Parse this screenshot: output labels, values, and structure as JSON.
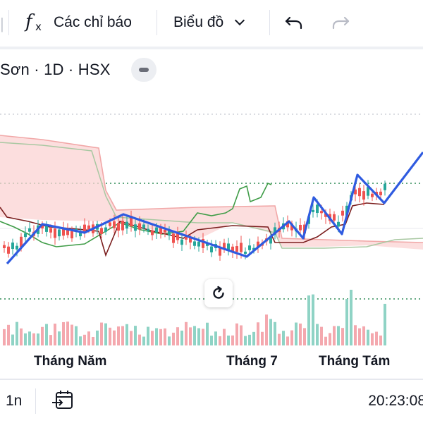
{
  "toolbar": {
    "left_edge_symbol": "|",
    "indicators_icon": "function-fx-icon",
    "indicators_label": "Các chỉ báo",
    "chart_type_label": "Biểu đồ",
    "undo_icon": "undo-arrow-icon",
    "redo_icon": "redo-arrow-icon"
  },
  "legend": {
    "text": "Sơn · 1D · HSX",
    "collapse_icon": "minus-icon"
  },
  "chart": {
    "reset_icon": "reset-rotate-icon",
    "x_axis_labels": [
      "Tháng Năm",
      "Tháng 7",
      "Tháng Tám"
    ],
    "colors": {
      "up": "#26a69a",
      "down": "#ef5350",
      "up_volume": "#8fd3c5",
      "down_volume": "#f4a8ae",
      "zigzag": "#2f5be0",
      "cloud": "#fbd3d3",
      "span_a": "#388e3c",
      "span_b": "#f1a7a7",
      "base_line": "#7b1e1e",
      "lagging": "#43a047",
      "price_line": "#2e8b57"
    }
  },
  "bottombar": {
    "range_label": "1n",
    "goto_date_icon": "calendar-arrow-icon",
    "time": "20:23:08"
  }
}
